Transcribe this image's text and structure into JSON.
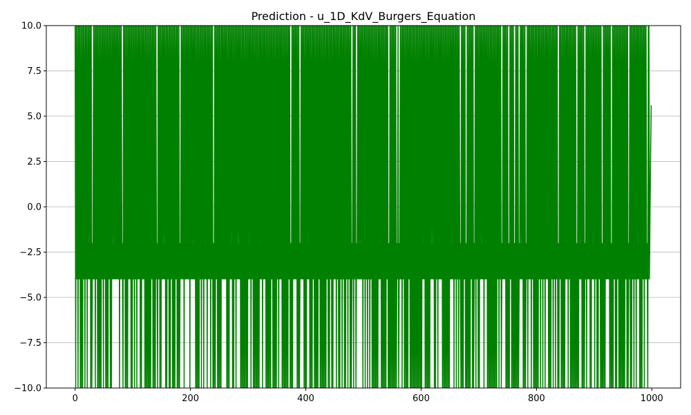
{
  "chart_data": {
    "type": "line",
    "title": "Prediction - u_1D_KdV_Burgers_Equation",
    "xlabel": "",
    "ylabel": "",
    "xlim": [
      -50,
      1050
    ],
    "ylim": [
      -10,
      10
    ],
    "x_ticks": [
      0,
      200,
      400,
      600,
      800,
      1000
    ],
    "x_tick_labels": [
      "0",
      "200",
      "400",
      "600",
      "800",
      "1000"
    ],
    "y_ticks": [
      -10,
      -7.5,
      -5,
      -2.5,
      0,
      2.5,
      5,
      7.5,
      10
    ],
    "y_tick_labels": [
      "−10.0",
      "−7.5",
      "−5.0",
      "−2.5",
      "0.0",
      "2.5",
      "5.0",
      "7.5",
      "10.0"
    ],
    "grid": "y-only",
    "legend": "none",
    "series": [
      {
        "color": "#008000",
        "x": [
          0,
          1,
          2,
          3,
          4,
          5,
          6,
          7,
          8,
          9,
          10,
          11,
          12,
          13,
          14,
          15,
          995,
          996,
          997,
          998,
          999
        ],
        "y": [
          10,
          -10,
          10,
          -4,
          10,
          -10,
          10,
          -2,
          10,
          -10,
          10,
          -4,
          10,
          -10,
          10,
          -3,
          10,
          -4,
          0,
          3,
          5.6
        ],
        "oscillation": {
          "x_range": [
            0,
            995
          ],
          "y_range": [
            -10,
            10
          ],
          "band_range": [
            -4,
            -2
          ],
          "note": "rapid period-1 oscillation saturating between axis limits"
        }
      }
    ]
  }
}
